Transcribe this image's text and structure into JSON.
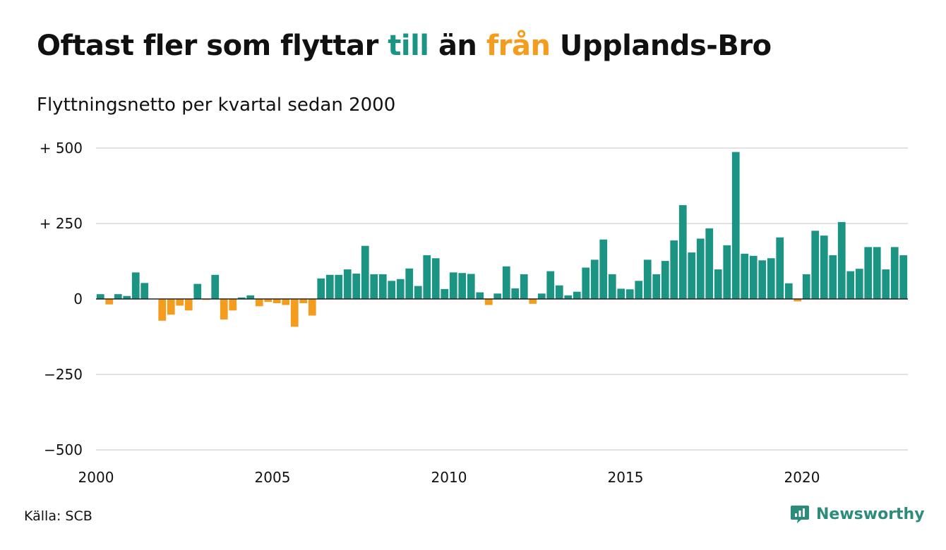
{
  "title": {
    "part1": "Oftast fler som flyttar ",
    "highlight_to": "till",
    "part2": " än ",
    "highlight_from": "från",
    "part3": " Upplands-Bro"
  },
  "subtitle": "Flyttningsnetto per kvartal sedan 2000",
  "source": "Källa: SCB",
  "brand": {
    "name": "Newsworthy",
    "icon": "newsworthy-logo-icon"
  },
  "colors": {
    "positive": "#1b9484",
    "negative": "#f39c1e",
    "grid": "#d9d9d9",
    "axis": "#222222",
    "text": "#111111"
  },
  "chart_data": {
    "type": "bar",
    "x_start": "2000Q1",
    "x_ticks": [
      2000,
      2005,
      2010,
      2015,
      2020
    ],
    "y_ticks": [
      500,
      250,
      0,
      -250,
      -500
    ],
    "y_tick_labels": [
      "+ 500",
      "+ 250",
      "0",
      "−250",
      "−500"
    ],
    "ylim": [
      -500,
      500
    ],
    "grid": true,
    "values": [
      16,
      -18,
      16,
      10,
      88,
      53,
      0,
      -72,
      -52,
      -22,
      -38,
      50,
      -3,
      80,
      -68,
      -38,
      5,
      12,
      -24,
      -10,
      -14,
      -20,
      -92,
      -14,
      -55,
      68,
      80,
      80,
      98,
      84,
      176,
      82,
      82,
      60,
      66,
      101,
      43,
      145,
      135,
      33,
      88,
      86,
      83,
      22,
      -20,
      18,
      108,
      35,
      82,
      -16,
      18,
      92,
      45,
      12,
      24,
      104,
      130,
      197,
      82,
      34,
      32,
      60,
      130,
      82,
      126,
      194,
      311,
      154,
      200,
      234,
      98,
      178,
      487,
      150,
      143,
      128,
      135,
      204,
      52,
      -8,
      82,
      226,
      210,
      145,
      255,
      92,
      100,
      172,
      172,
      98,
      172,
      145
    ]
  }
}
